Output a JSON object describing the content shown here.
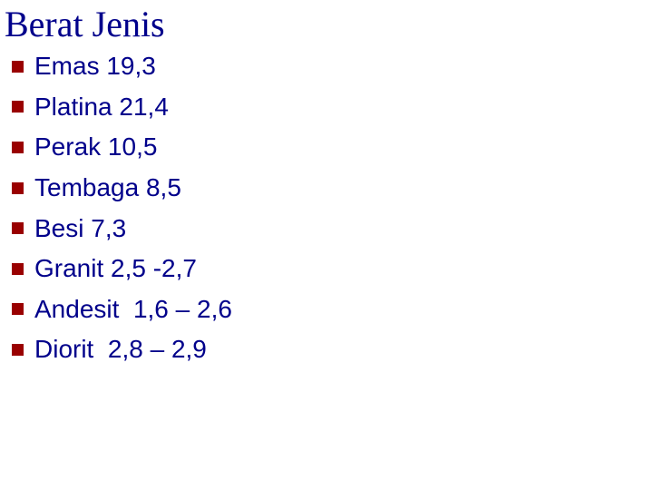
{
  "slide": {
    "title": "Berat Jenis",
    "title_color": "#00008B",
    "text_color": "#00008B",
    "bullet_color": "#990000",
    "background_color": "#FFFFFF",
    "items": [
      "Emas 19,3",
      "Platina 21,4",
      "Perak 10,5",
      "Tembaga 8,5",
      "Besi 7,3",
      "Granit 2,5 -2,7",
      "Andesit  1,6 – 2,6",
      "Diorit  2,8 – 2,9"
    ]
  }
}
